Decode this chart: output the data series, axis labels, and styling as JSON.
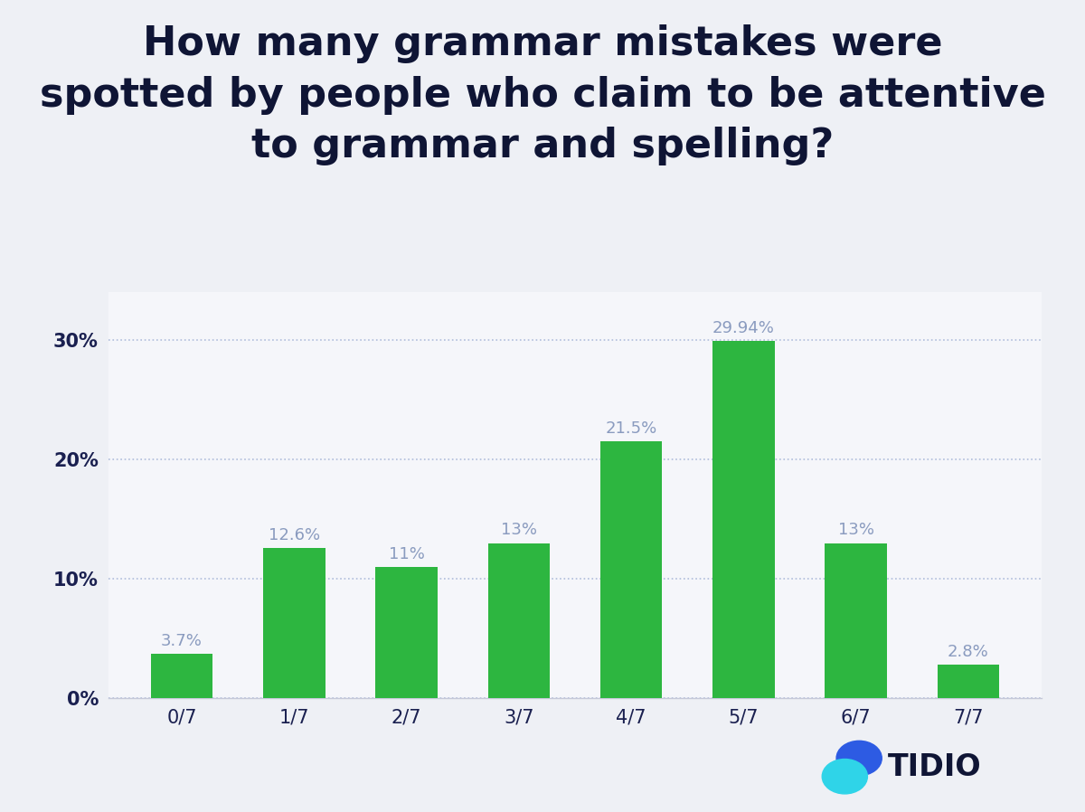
{
  "categories": [
    "0/7",
    "1/7",
    "2/7",
    "3/7",
    "4/7",
    "5/7",
    "6/7",
    "7/7"
  ],
  "values": [
    3.7,
    12.6,
    11.0,
    13.0,
    21.5,
    29.94,
    13.0,
    2.8
  ],
  "labels": [
    "3.7%",
    "12.6%",
    "11%",
    "13%",
    "21.5%",
    "29.94%",
    "13%",
    "2.8%"
  ],
  "bar_color": "#2db640",
  "background_color": "#eef0f5",
  "chart_bg_color": "#f5f6fa",
  "title_line1": "How many grammar mistakes were",
  "title_line2": "spotted by people who claim to be attentive",
  "title_line3": "to grammar and spelling?",
  "title_color": "#0f1535",
  "title_fontsize": 32,
  "yticks": [
    0,
    10,
    20,
    30
  ],
  "ytick_labels": [
    "0%",
    "10%",
    "20%",
    "30%"
  ],
  "ylim": [
    0,
    34
  ],
  "grid_color": "#9fafd4",
  "label_color": "#8a9bbf",
  "label_fontsize": 13,
  "tick_fontsize": 15,
  "tick_color": "#1a2050",
  "tidio_text": "TIDIO",
  "tidio_color": "#0f1535",
  "tidio_fontsize": 24,
  "logo_dark_blue": "#2d5be3",
  "logo_cyan": "#2fd4e8"
}
